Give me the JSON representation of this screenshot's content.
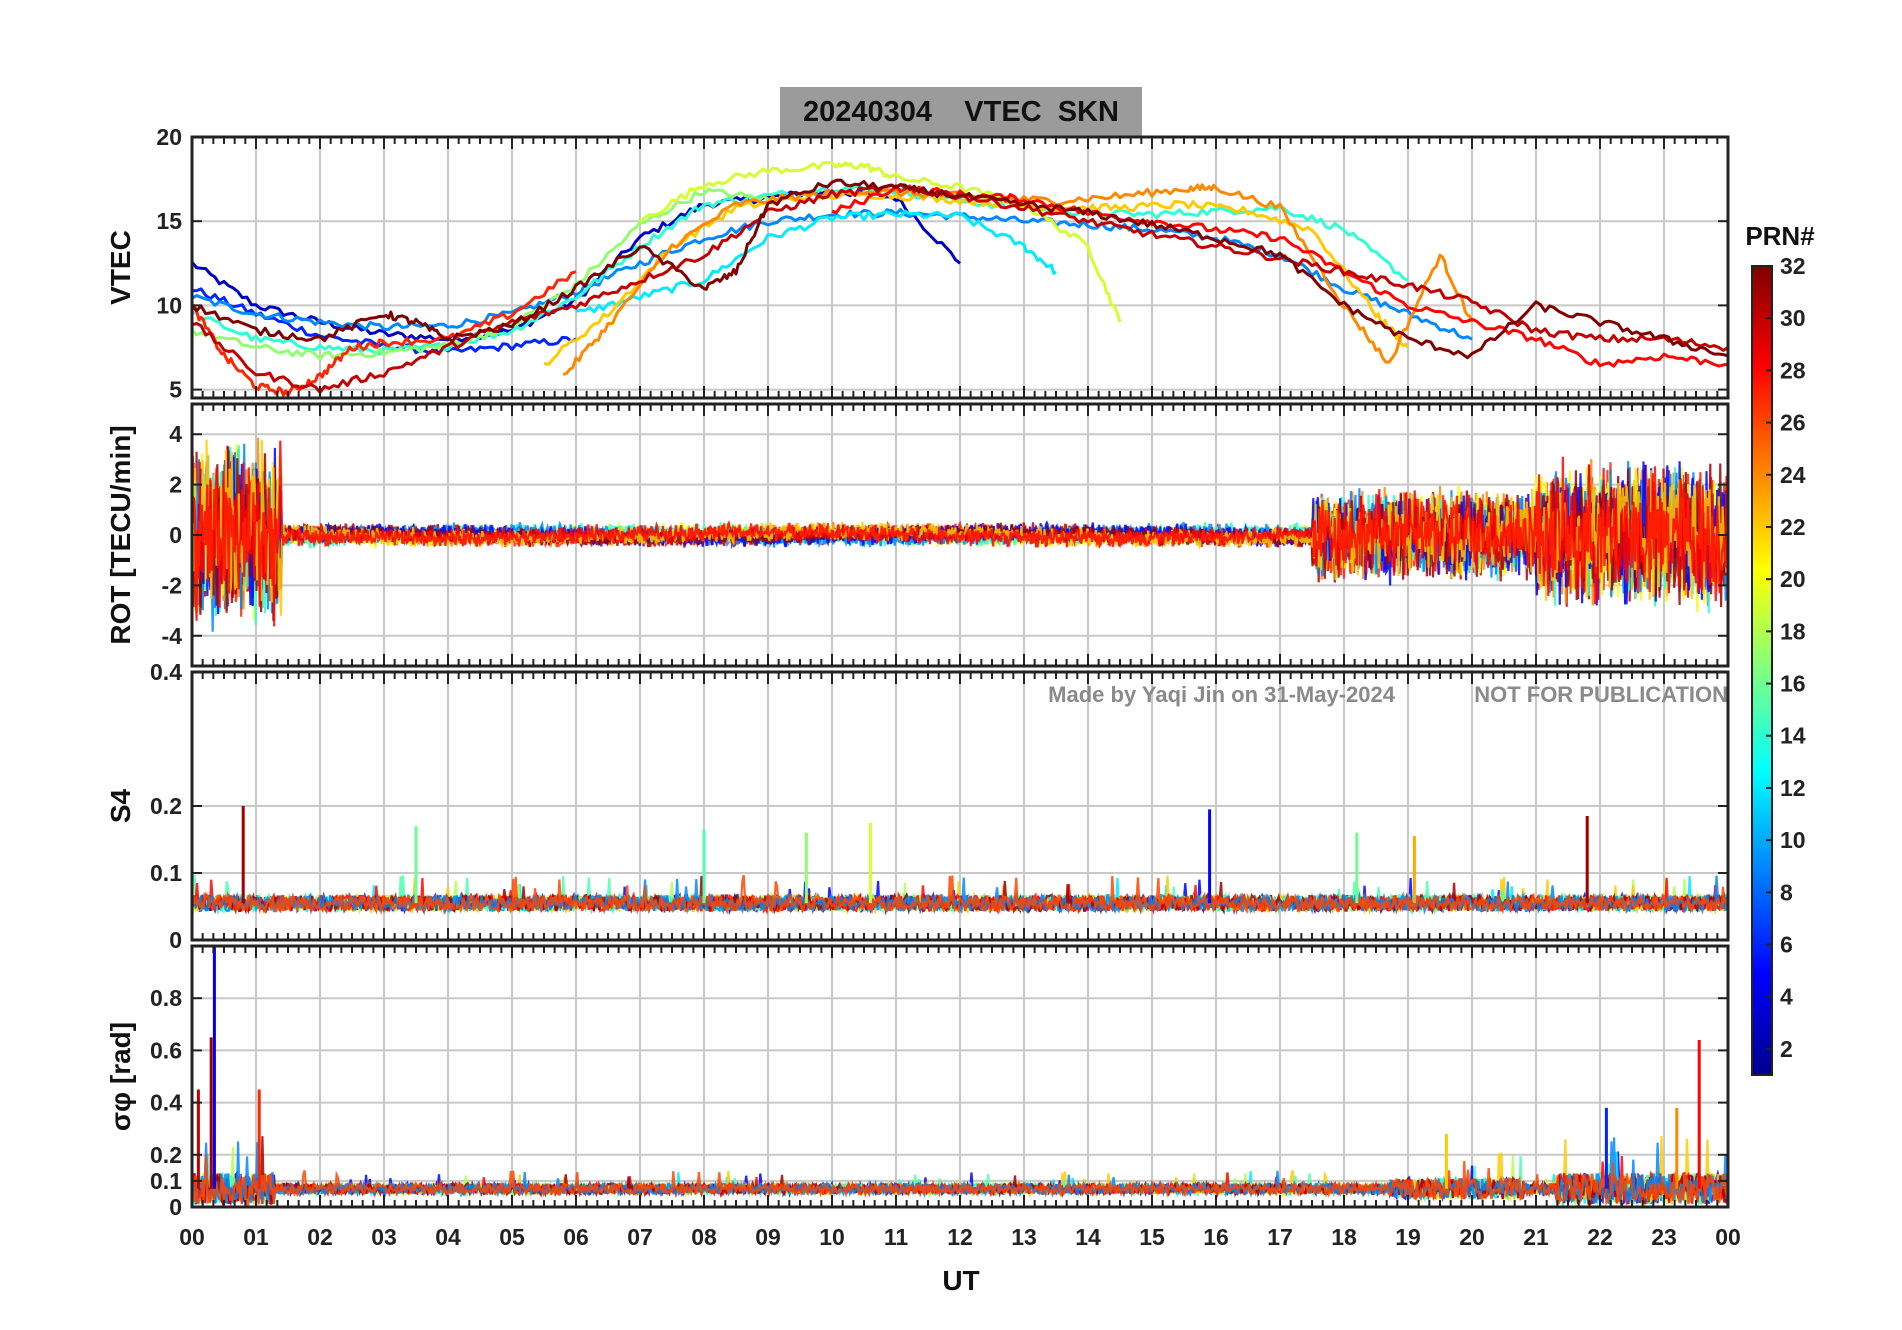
{
  "chart_data": {
    "type": "line",
    "title": "20240304    VTEC  SKN",
    "xlabel": "UT",
    "x_ticks": [
      "00",
      "01",
      "02",
      "03",
      "04",
      "05",
      "06",
      "07",
      "08",
      "09",
      "10",
      "11",
      "12",
      "13",
      "14",
      "15",
      "16",
      "17",
      "18",
      "19",
      "20",
      "21",
      "22",
      "23",
      "00"
    ],
    "xlim": [
      0,
      24
    ],
    "watermark_left": "Made by Yaqi Jin on 31-May-2024",
    "watermark_right": "NOT FOR PUBLICATION",
    "colorbar": {
      "label": "PRN#",
      "range": [
        1,
        32
      ],
      "ticks": [
        "2",
        "4",
        "6",
        "8",
        "10",
        "12",
        "14",
        "16",
        "18",
        "20",
        "22",
        "24",
        "26",
        "28",
        "30",
        "32"
      ],
      "colormap": [
        "#00008f",
        "#0000ff",
        "#0080ff",
        "#00ffff",
        "#80ff80",
        "#ffff00",
        "#ff8000",
        "#ff0000",
        "#800000"
      ]
    },
    "panels": [
      {
        "id": "vtec",
        "ylabel": "VTEC",
        "ylim": [
          4.5,
          20
        ],
        "yticks": [
          "5",
          "10",
          "15",
          "20"
        ],
        "ytick_values": [
          5,
          10,
          15,
          20
        ],
        "series": [
          {
            "prn": 3,
            "t": [
              0,
              1,
              2,
              3,
              4,
              5,
              6,
              7,
              8,
              9,
              10,
              11,
              12
            ],
            "v": [
              12.5,
              10,
              9,
              8.3,
              8,
              8.5,
              10.3,
              14,
              16,
              16.4,
              16.8,
              16.4,
              12.5
            ]
          },
          {
            "prn": 6,
            "t": [
              0,
              1,
              2,
              3,
              4,
              5,
              6
            ],
            "v": [
              11,
              9.5,
              8.2,
              7.6,
              7.2,
              7.6,
              8
            ]
          },
          {
            "prn": 9,
            "t": [
              0,
              1,
              2,
              3,
              4,
              5,
              6,
              7,
              8,
              9,
              10,
              11,
              12,
              13,
              14,
              15,
              16,
              17,
              18,
              19,
              20
            ],
            "v": [
              10.5,
              9.5,
              9,
              8.7,
              8.8,
              9.5,
              10.8,
              12.5,
              14,
              15,
              15.4,
              15.5,
              15.3,
              15,
              14.8,
              14.5,
              14,
              13,
              11,
              9.5,
              8
            ]
          },
          {
            "prn": 12,
            "t": [
              6,
              7,
              8,
              9,
              10,
              11,
              12,
              13,
              13.5
            ],
            "v": [
              9.5,
              10.5,
              11.5,
              14,
              15.2,
              15.4,
              15.3,
              13.5,
              12
            ]
          },
          {
            "prn": 14,
            "t": [
              0,
              1,
              2,
              3,
              4,
              5,
              6,
              7,
              8,
              9,
              10,
              11,
              12,
              13,
              14,
              15,
              16,
              17,
              18,
              19
            ],
            "v": [
              9.5,
              8,
              7.5,
              7.3,
              7.6,
              8.5,
              10.5,
              13.5,
              16,
              16.5,
              17,
              16.8,
              16.2,
              15.8,
              15.5,
              15.4,
              15.6,
              15.8,
              14.5,
              11.5
            ]
          },
          {
            "prn": 17,
            "t": [
              0,
              1,
              2,
              3,
              4,
              5,
              6,
              7,
              8,
              9
            ],
            "v": [
              8.5,
              7.5,
              7,
              7.2,
              7.6,
              8.8,
              11.2,
              14.8,
              16.8,
              16.3
            ]
          },
          {
            "prn": 19,
            "t": [
              7,
              8,
              9,
              10,
              10.5,
              11,
              12,
              13,
              14,
              14.5
            ],
            "v": [
              15,
              17.2,
              18,
              18.3,
              18.3,
              17.6,
              17,
              16,
              13.5,
              9
            ]
          },
          {
            "prn": 22,
            "t": [
              5.5,
              6.5,
              7.5,
              8.5,
              9.5,
              10.5,
              11.5,
              12.5,
              13.5,
              14.5,
              15.5,
              16.5,
              17.5,
              18.5,
              19
            ],
            "v": [
              6.5,
              9.5,
              13.5,
              15.8,
              16.4,
              16.6,
              16.4,
              16.1,
              15.8,
              15.8,
              16,
              15.6,
              14.5,
              9.5,
              7.5
            ]
          },
          {
            "prn": 24,
            "t": [
              5.8,
              6.5,
              7.5,
              8.5,
              9.5,
              10.5,
              11.5,
              12.5,
              13.5,
              14.5,
              15.5,
              16,
              17,
              18,
              18.7,
              19.5,
              20
            ],
            "v": [
              5.8,
              8.8,
              13.5,
              16,
              16.5,
              16.8,
              16.6,
              16.4,
              16.2,
              16.5,
              16.9,
              17,
              15.8,
              10,
              6.5,
              13,
              9
            ]
          },
          {
            "prn": 27,
            "t": [
              0,
              0.5,
              1,
              1.5,
              2,
              2.5,
              3,
              4,
              5,
              6
            ],
            "v": [
              10,
              7,
              5.2,
              4.8,
              5.8,
              7.5,
              7.8,
              8,
              9.5,
              12
            ]
          },
          {
            "prn": 28,
            "t": [
              10,
              11,
              12,
              13,
              14,
              15,
              16,
              17,
              18,
              19,
              20,
              21,
              22,
              23,
              24
            ],
            "v": [
              15.5,
              17,
              16.6,
              16.3,
              15.5,
              15,
              14.5,
              14,
              12,
              10,
              9,
              8,
              6.5,
              7,
              6.5
            ]
          },
          {
            "prn": 30,
            "t": [
              0,
              1,
              2,
              3,
              4,
              5,
              6,
              7,
              8,
              9,
              10,
              11,
              12,
              13,
              14,
              15,
              16,
              17,
              18,
              19,
              20,
              21,
              22,
              23,
              24
            ],
            "v": [
              9,
              6,
              5,
              6,
              7.5,
              9,
              10,
              11.5,
              13,
              15.5,
              16.6,
              17,
              16.5,
              15.8,
              15,
              14.2,
              13.5,
              12.8,
              12,
              11.2,
              10.2,
              8.5,
              8,
              8,
              7.5
            ]
          },
          {
            "prn": 32,
            "t": [
              0,
              1,
              2,
              3,
              3.5,
              4,
              5,
              6,
              7,
              8,
              8.5,
              9,
              10,
              11,
              12,
              13,
              14,
              15,
              16,
              17,
              18,
              19,
              20,
              21,
              22,
              23,
              24
            ],
            "v": [
              10,
              8.5,
              8,
              9.5,
              9,
              8,
              8.8,
              11,
              13.5,
              11,
              12,
              16,
              17.3,
              17,
              16.5,
              16,
              15.5,
              14.8,
              14,
              13,
              10,
              8,
              7,
              10,
              9,
              8,
              7
            ]
          }
        ]
      },
      {
        "id": "rot",
        "ylabel": "ROT [TECU/min]",
        "ylim": [
          -5.2,
          5.2
        ],
        "yticks": [
          "-4",
          "-2",
          "0",
          "2",
          "4"
        ],
        "ytick_values": [
          -4,
          -2,
          0,
          2,
          4
        ],
        "noise_segments": [
          {
            "t0": 0,
            "t1": 1.4,
            "amp": 3.2
          },
          {
            "t0": 1.4,
            "t1": 17.5,
            "amp": 0.35
          },
          {
            "t0": 17.5,
            "t1": 21,
            "amp": 1.6
          },
          {
            "t0": 21,
            "t1": 24,
            "amp": 2.6
          }
        ]
      },
      {
        "id": "s4",
        "ylabel": "S4",
        "ylim": [
          0,
          0.4
        ],
        "yticks": [
          "0",
          "0.1",
          "0.2",
          "0.4"
        ],
        "ytick_values": [
          0,
          0.1,
          0.2,
          0.4
        ],
        "baseline": 0.055,
        "spikes": [
          {
            "t": 0.8,
            "v": 0.2,
            "prn": 31
          },
          {
            "t": 3.5,
            "v": 0.17,
            "prn": 16
          },
          {
            "t": 8.0,
            "v": 0.165,
            "prn": 15
          },
          {
            "t": 9.6,
            "v": 0.16,
            "prn": 17
          },
          {
            "t": 10.6,
            "v": 0.175,
            "prn": 19
          },
          {
            "t": 15.9,
            "v": 0.195,
            "prn": 5
          },
          {
            "t": 18.2,
            "v": 0.16,
            "prn": 16
          },
          {
            "t": 19.1,
            "v": 0.155,
            "prn": 23
          },
          {
            "t": 21.8,
            "v": 0.185,
            "prn": 31
          }
        ]
      },
      {
        "id": "sigma_phi",
        "ylabel": "σφ [rad]",
        "ylim": [
          0,
          1.0
        ],
        "yticks": [
          "0",
          "0.1",
          "0.2",
          "0.4",
          "0.6",
          "0.8"
        ],
        "ytick_values": [
          0,
          0.1,
          0.2,
          0.4,
          0.6,
          0.8
        ],
        "baseline": 0.07,
        "spikes": [
          {
            "t": 0.35,
            "v": 1.0,
            "prn": 4
          },
          {
            "t": 0.3,
            "v": 0.65,
            "prn": 31
          },
          {
            "t": 0.1,
            "v": 0.45,
            "prn": 30
          },
          {
            "t": 1.05,
            "v": 0.45,
            "prn": 27
          },
          {
            "t": 23.55,
            "v": 0.64,
            "prn": 28
          },
          {
            "t": 23.2,
            "v": 0.38,
            "prn": 24
          },
          {
            "t": 22.1,
            "v": 0.38,
            "prn": 6
          },
          {
            "t": 19.6,
            "v": 0.28,
            "prn": 22
          }
        ]
      }
    ]
  }
}
